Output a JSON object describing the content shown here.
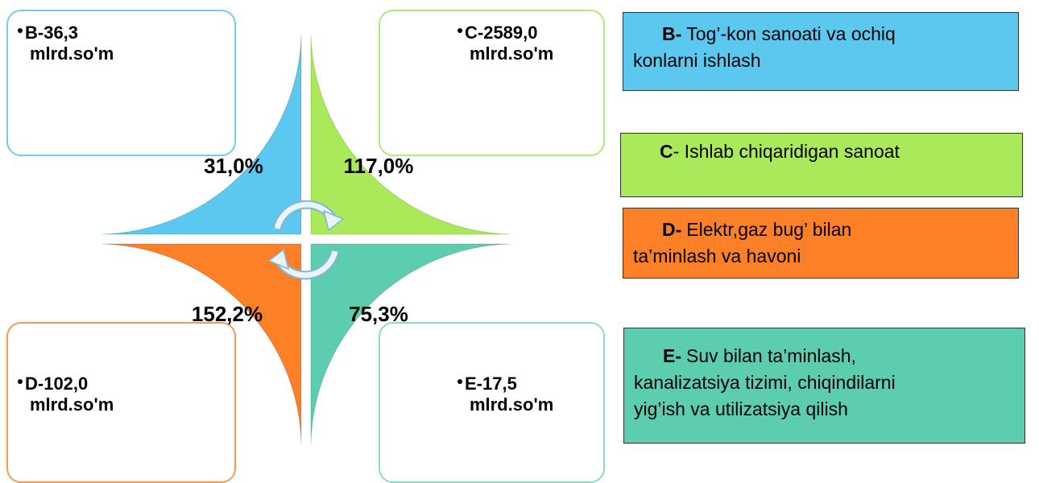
{
  "sectors": [
    {
      "amount": "B-36,3",
      "unit": "mlrd.so'm",
      "percent": "31,0%",
      "code": "B-",
      "lines": [
        "Tog’-kon sanoati va ochiq",
        "konlarni ishlash"
      ]
    },
    {
      "amount": "C-2589,0",
      "unit": "mlrd.so'm",
      "percent": "117,0%",
      "code": "C",
      "lines": [
        "- Ishlab chiqaridigan sanoat"
      ]
    },
    {
      "amount": "D-102,0",
      "unit": "mlrd.so'm",
      "percent": "152,2%",
      "code": "D-",
      "lines": [
        "Elektr,gaz bug’ bilan",
        "ta’minlash va havoni"
      ]
    },
    {
      "amount": "E-17,5",
      "unit": "mlrd.so'm",
      "percent": "75,3%",
      "code": "E-",
      "lines": [
        "Suv bilan ta’minlash,",
        "kanalizatsiya tizimi, chiqindilarni",
        "yig’ish va  utilizatsiya  qilish"
      ]
    }
  ]
}
